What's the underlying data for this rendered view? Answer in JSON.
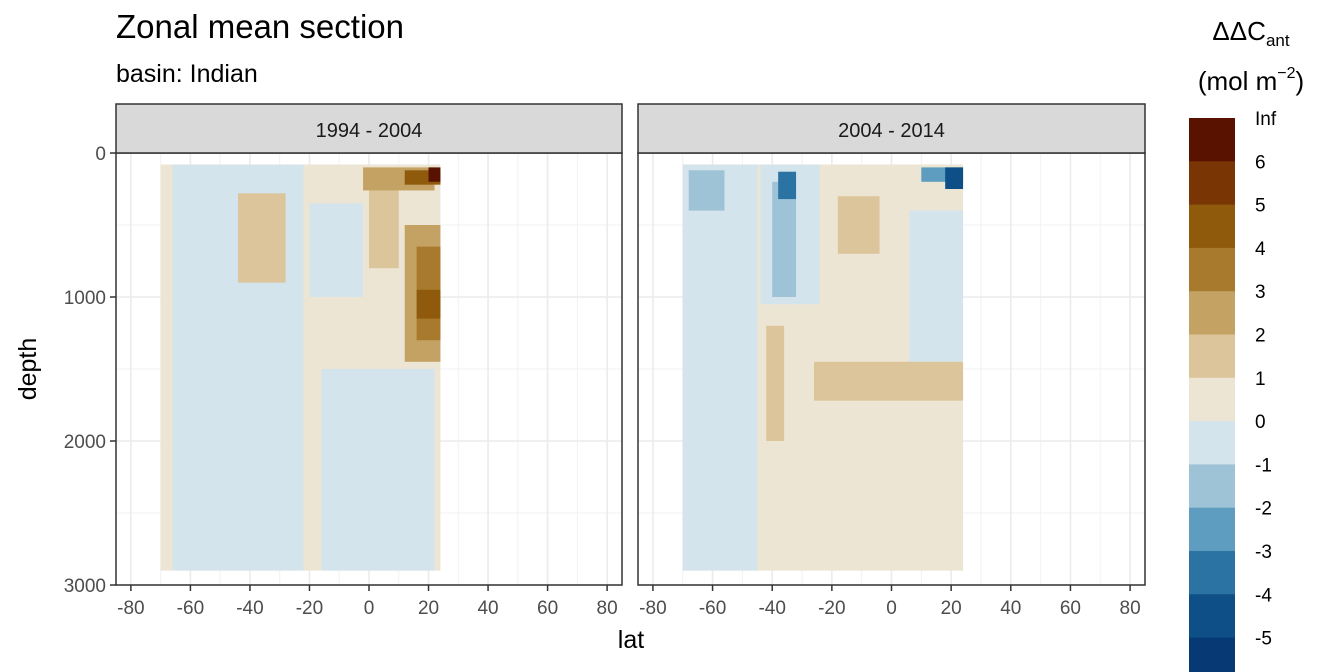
{
  "title": "Zonal mean section",
  "subtitle": "basin: Indian",
  "chart_data": {
    "type": "heatmap",
    "title": "Zonal mean section",
    "subtitle": "basin: Indian",
    "xlabel": "lat",
    "ylabel": "depth",
    "xlim": [
      -85,
      85
    ],
    "ylim": [
      3000,
      0
    ],
    "x_ticks": [
      -80,
      -60,
      -40,
      -20,
      0,
      20,
      40,
      60,
      80
    ],
    "y_ticks": [
      0,
      1000,
      2000,
      3000
    ],
    "grid": true,
    "panels": [
      {
        "label": "1994 - 2004",
        "data_extent": {
          "lat": [
            -70,
            24
          ],
          "depth": [
            0,
            2900
          ]
        },
        "regions": [
          {
            "lat": [
              -70,
              24
            ],
            "depth": [
              80,
              2900
            ],
            "class": "0 to 1"
          },
          {
            "lat": [
              -66,
              -22
            ],
            "depth": [
              80,
              2900
            ],
            "class": "-1 to 0"
          },
          {
            "lat": [
              -16,
              22
            ],
            "depth": [
              1500,
              2900
            ],
            "class": "-1 to 0"
          },
          {
            "lat": [
              -20,
              -2
            ],
            "depth": [
              350,
              1000
            ],
            "class": "-1 to 0"
          },
          {
            "lat": [
              -44,
              -28
            ],
            "depth": [
              280,
              900
            ],
            "class": "1 to 2"
          },
          {
            "lat": [
              0,
              10
            ],
            "depth": [
              220,
              800
            ],
            "class": "1 to 2"
          },
          {
            "lat": [
              -2,
              22
            ],
            "depth": [
              100,
              260
            ],
            "class": "2 to 3"
          },
          {
            "lat": [
              12,
              24
            ],
            "depth": [
              500,
              1450
            ],
            "class": "2 to 3"
          },
          {
            "lat": [
              16,
              24
            ],
            "depth": [
              650,
              1300
            ],
            "class": "3 to 4"
          },
          {
            "lat": [
              16,
              24
            ],
            "depth": [
              950,
              1150
            ],
            "class": "4 to 5"
          },
          {
            "lat": [
              12,
              24
            ],
            "depth": [
              120,
              220
            ],
            "class": "4 to 5"
          },
          {
            "lat": [
              20,
              24
            ],
            "depth": [
              100,
              200
            ],
            "class": "6 to Inf"
          }
        ]
      },
      {
        "label": "2004 - 2014",
        "data_extent": {
          "lat": [
            -70,
            24
          ],
          "depth": [
            0,
            2900
          ]
        },
        "regions": [
          {
            "lat": [
              -70,
              24
            ],
            "depth": [
              80,
              2900
            ],
            "class": "0 to 1"
          },
          {
            "lat": [
              -70,
              -45
            ],
            "depth": [
              80,
              2900
            ],
            "class": "-1 to 0"
          },
          {
            "lat": [
              -44,
              -24
            ],
            "depth": [
              80,
              1050
            ],
            "class": "-1 to 0"
          },
          {
            "lat": [
              6,
              24
            ],
            "depth": [
              400,
              1450
            ],
            "class": "-1 to 0"
          },
          {
            "lat": [
              -40,
              -32
            ],
            "depth": [
              200,
              1000
            ],
            "class": "-2 to -1"
          },
          {
            "lat": [
              -68,
              -56
            ],
            "depth": [
              120,
              400
            ],
            "class": "-2 to -1"
          },
          {
            "lat": [
              -38,
              -32
            ],
            "depth": [
              130,
              320
            ],
            "class": "-4 to -3"
          },
          {
            "lat": [
              -18,
              -4
            ],
            "depth": [
              300,
              700
            ],
            "class": "1 to 2"
          },
          {
            "lat": [
              -26,
              24
            ],
            "depth": [
              1450,
              1720
            ],
            "class": "1 to 2"
          },
          {
            "lat": [
              -42,
              -36
            ],
            "depth": [
              1200,
              2000
            ],
            "class": "1 to 2"
          },
          {
            "lat": [
              10,
              24
            ],
            "depth": [
              100,
              200
            ],
            "class": "-3 to -2"
          },
          {
            "lat": [
              18,
              24
            ],
            "depth": [
              100,
              250
            ],
            "class": "-5 to -4"
          }
        ]
      }
    ],
    "legend": {
      "title_main": "ΔΔC",
      "title_sub": "ant",
      "unit_prefix": "(mol m",
      "unit_exp": "−2",
      "unit_suffix": ")",
      "placement": "right",
      "labels": [
        "Inf",
        "6",
        "5",
        "4",
        "3",
        "2",
        "1",
        "0",
        "-1",
        "-2",
        "-3",
        "-4",
        "-5"
      ],
      "classes": [
        "6 to Inf",
        "5 to 6",
        "4 to 5",
        "3 to 4",
        "2 to 3",
        "1 to 2",
        "0 to 1",
        "-1 to 0",
        "-2 to -1",
        "-3 to -2",
        "-4 to -3",
        "-5 to -4",
        "-6 to -5"
      ],
      "colors": [
        "#5a1200",
        "#7a3505",
        "#8f5a0c",
        "#a87a2e",
        "#c4a263",
        "#dcc59b",
        "#ede5d4",
        "#d4e4ec",
        "#9ec3d6",
        "#5e9dbf",
        "#2a73a3",
        "#0d4f86",
        "#073a74"
      ]
    }
  }
}
